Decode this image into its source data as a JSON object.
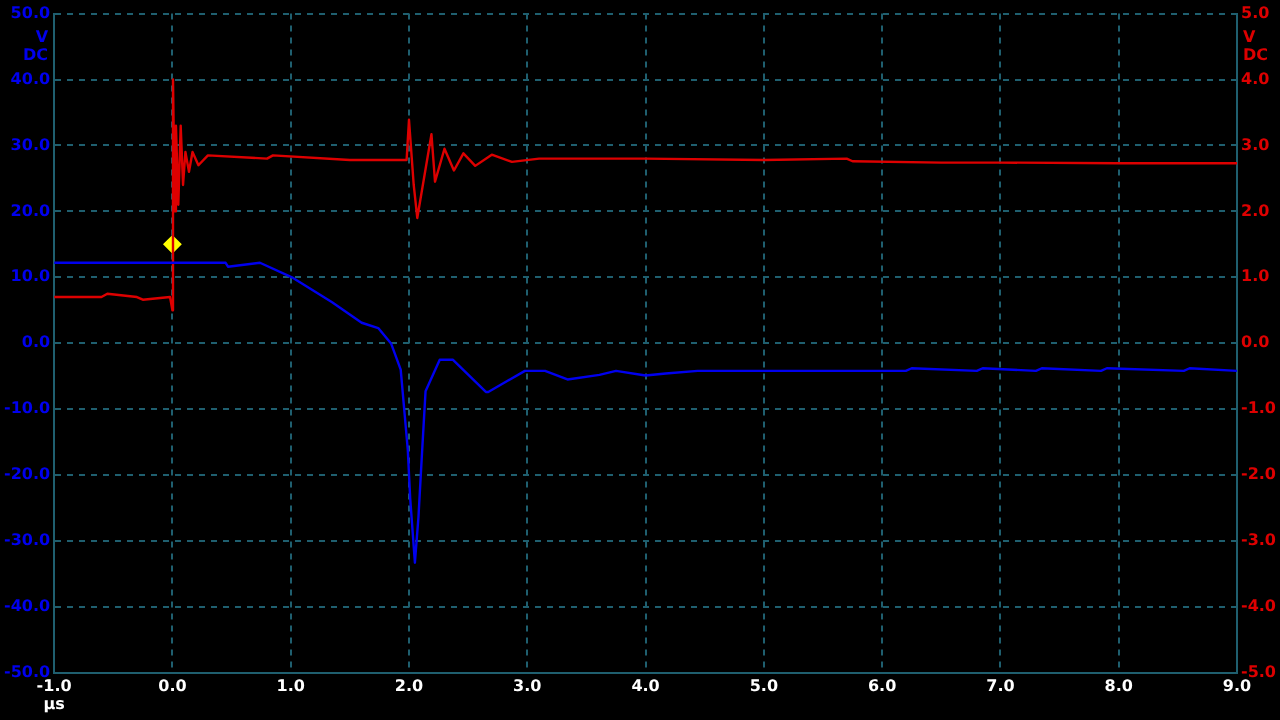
{
  "chart_data": {
    "type": "line",
    "xlabel": "µs",
    "ylabel": "V DC",
    "y2label": "V DC",
    "xlim": [
      -1,
      9
    ],
    "xticks": [
      {
        "value": -1,
        "label": "-1.0"
      },
      {
        "value": 0,
        "label": "0.0"
      },
      {
        "value": 1,
        "label": "1.0"
      },
      {
        "value": 2,
        "label": "2.0"
      },
      {
        "value": 3,
        "label": "3.0"
      },
      {
        "value": 4,
        "label": "4.0"
      },
      {
        "value": 5,
        "label": "5.0"
      },
      {
        "value": 6,
        "label": "6.0"
      },
      {
        "value": 7,
        "label": "7.0"
      },
      {
        "value": 8,
        "label": "8.0"
      },
      {
        "value": 9,
        "label": "9.0"
      }
    ],
    "ylim": [
      -50,
      50
    ],
    "yticks": [
      {
        "value": -50,
        "label": "-50.0"
      },
      {
        "value": -40,
        "label": "-40.0"
      },
      {
        "value": -30,
        "label": "-30.0"
      },
      {
        "value": -20,
        "label": "-20.0"
      },
      {
        "value": -10,
        "label": "-10.0"
      },
      {
        "value": 0,
        "label": "0.0"
      },
      {
        "value": 10,
        "label": "10.0"
      },
      {
        "value": 20,
        "label": "20.0"
      },
      {
        "value": 30,
        "label": "30.0"
      },
      {
        "value": 40,
        "label": "40.0"
      },
      {
        "value": 50,
        "label": "50.0"
      }
    ],
    "y2lim": [
      -5,
      5
    ],
    "y2ticks": [
      {
        "value": -5,
        "label": "-5.0"
      },
      {
        "value": -4,
        "label": "-4.0"
      },
      {
        "value": -3,
        "label": "-3.0"
      },
      {
        "value": -2,
        "label": "-2.0"
      },
      {
        "value": -1,
        "label": "-1.0"
      },
      {
        "value": 0,
        "label": "0.0"
      },
      {
        "value": 1,
        "label": "1.0"
      },
      {
        "value": 2,
        "label": "2.0"
      },
      {
        "value": 3,
        "label": "3.0"
      },
      {
        "value": 4,
        "label": "4.0"
      },
      {
        "value": 5,
        "label": "5.0"
      }
    ],
    "grid": true,
    "legend": false,
    "line_style": "solid",
    "series": [
      {
        "color": "#0000ee",
        "axis": "y",
        "marker": "none",
        "x": [
          -1,
          0.45,
          0.47,
          0.74,
          1.02,
          1.35,
          1.6,
          1.74,
          1.85,
          1.93,
          1.99,
          2.01,
          2.05,
          2.08,
          2.11,
          2.14,
          2.26,
          2.37,
          2.65,
          2.67,
          2.98,
          3.15,
          3.34,
          3.61,
          3.75,
          4.0,
          4.17,
          4.44,
          4.61,
          5.0,
          6.2,
          6.25,
          6.8,
          6.85,
          7.3,
          7.35,
          7.85,
          7.9,
          8.55,
          8.6,
          9.0
        ],
        "values": [
          12.2,
          12.2,
          11.6,
          12.2,
          9.9,
          6.2,
          3.1,
          2.3,
          -0.1,
          -4.0,
          -16.2,
          -23.5,
          -33.3,
          -26.4,
          -16.7,
          -7.3,
          -2.5,
          -2.5,
          -7.4,
          -7.4,
          -4.2,
          -4.2,
          -5.5,
          -4.8,
          -4.2,
          -4.9,
          -4.6,
          -4.2,
          -4.2,
          -4.2,
          -4.2,
          -3.8,
          -4.2,
          -3.8,
          -4.2,
          -3.8,
          -4.2,
          -3.8,
          -4.2,
          -3.8,
          -4.2
        ]
      },
      {
        "color": "#dd0000",
        "axis": "y2",
        "marker": "none",
        "x": [
          -1,
          -0.6,
          -0.55,
          -0.3,
          -0.25,
          -0.02,
          0,
          0.005,
          0.02,
          0.03,
          0.05,
          0.07,
          0.09,
          0.11,
          0.14,
          0.17,
          0.22,
          0.3,
          0.8,
          0.85,
          1.5,
          1.98,
          2.0,
          2.04,
          2.07,
          2.19,
          2.22,
          2.3,
          2.38,
          2.46,
          2.56,
          2.7,
          2.87,
          3.1,
          4.0,
          5.0,
          5.7,
          5.75,
          6.5,
          7.0,
          8.0,
          9.0
        ],
        "values": [
          0.7,
          0.7,
          0.75,
          0.7,
          0.66,
          0.7,
          0.5,
          4.0,
          2.0,
          3.3,
          2.1,
          3.3,
          2.4,
          2.9,
          2.6,
          2.9,
          2.7,
          2.85,
          2.8,
          2.85,
          2.78,
          2.78,
          3.39,
          2.4,
          1.9,
          3.17,
          2.45,
          2.95,
          2.62,
          2.88,
          2.69,
          2.86,
          2.75,
          2.8,
          2.8,
          2.78,
          2.8,
          2.76,
          2.74,
          2.74,
          2.73,
          2.73
        ]
      },
      {
        "type": "scatter",
        "color": "#ffff00",
        "axis": "y",
        "marker": "diamond",
        "x": [
          0
        ],
        "values": [
          15
        ]
      }
    ]
  }
}
